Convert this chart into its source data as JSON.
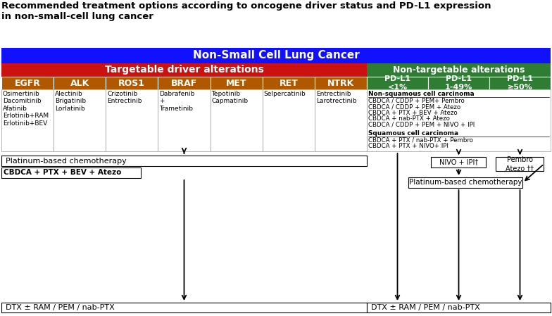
{
  "title": "Recommended treatment options according to oncogene driver status and PD-L1 expression\nin non-small-cell lung cancer",
  "title_fontsize": 9.5,
  "blue_header": "Non-Small Cell Lung Cancer",
  "blue_color": "#1111ff",
  "red_color": "#cc1111",
  "green_color": "#2e7d32",
  "orange_color": "#b05800",
  "white": "#ffffff",
  "black": "#000000",
  "targetable_label": "Targetable driver alterations",
  "non_targetable_label": "Non-targetable alterations",
  "col_labels": [
    "EGFR",
    "ALK",
    "ROS1",
    "BRAF",
    "MET",
    "RET",
    "NTRK"
  ],
  "drugs": [
    "Osimertinib\nDacomitinib\nAfatinib\nErlotinib+RAM\nErlotinib+BEV",
    "Alectinib\nBrigatinib\nLorlatinib",
    "Crizotinib\nEntrectinib",
    "Dabrafenib\n+\nTrametinib",
    "Tepotinib\nCapmatinib",
    "Selpercatinib",
    "Entrectinib\nLarotrectinib"
  ],
  "pdl1_labels": [
    "PD-L1\n<1%",
    "PD-L1\n1-49%",
    "PD-L1\n≥50%"
  ],
  "non_sq_heading": "Non-squamous cell carcinoma",
  "non_sq_lines": [
    "CBDCA / CDDP + PEM+ Pembro",
    "CBDCA / CDDP + PEM + Atezo",
    "CBDCA + PTX + BEV + Atezo",
    "CBDCA + nab-PTX + Atezo",
    "CBDCA / CDDP + PEM + NIVO + IPI"
  ],
  "sq_heading": "Squamous cell carcinoma",
  "sq_lines": [
    "CBDCA + PTX / nab-PTX + Pembro",
    "CBDCA + PTX + NIVO+ IPI"
  ],
  "nivo_ipi": "NIVO + IPI†",
  "pembro_atezo": "Pembro\nAtezo ††",
  "plat_chemo_left": "Platinum-based chemotherapy",
  "cbdca_bev": "CBDCA + PTX + BEV + Atezo",
  "plat_chemo_right": "Platinum-based chemotherapy",
  "dtx_left": "DTX ± RAM / PEM / nab-PTX",
  "dtx_right": "DTX ± RAM / PEM / nab-PTX"
}
